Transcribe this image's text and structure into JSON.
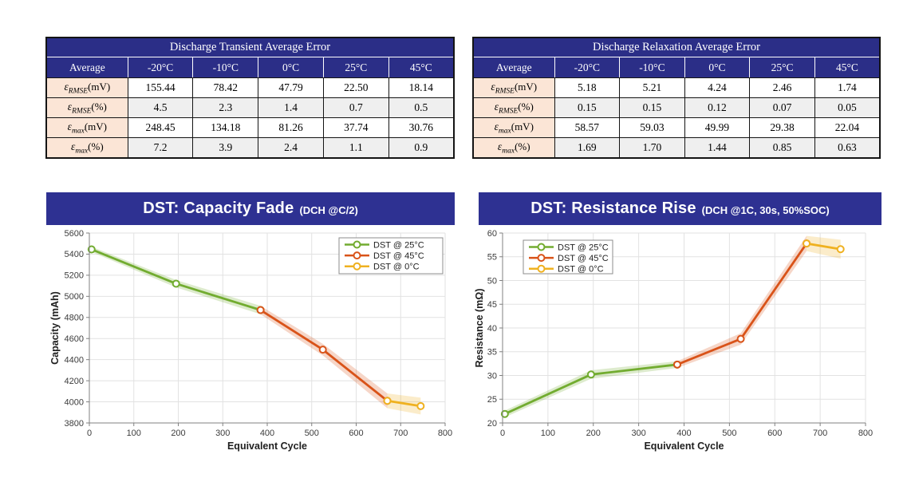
{
  "colors": {
    "banner_navy": "#2E3192",
    "table_header_navy": "#2B2E87",
    "row_label_peach": "#FBE5D6",
    "stripe_gray": "#EFEFEF",
    "series_green": "#72AC30",
    "series_red": "#D95319",
    "series_yellow": "#EFB120",
    "grid_gray": "#E2E2E2",
    "axis_gray": "#808080"
  },
  "tables": [
    {
      "title": "Discharge Transient Average Error",
      "corner": "Average",
      "cols": [
        "-20°C",
        "-10°C",
        "0°C",
        "25°C",
        "45°C"
      ],
      "rows": [
        {
          "sym": "ε",
          "sub": "RMSE",
          "unit": "(mV)",
          "v": [
            "155.44",
            "78.42",
            "47.79",
            "22.50",
            "18.14"
          ]
        },
        {
          "sym": "ε",
          "sub": "RMSE",
          "unit": "(%)",
          "v": [
            "4.5",
            "2.3",
            "1.4",
            "0.7",
            "0.5"
          ]
        },
        {
          "sym": "ε",
          "sub": "max",
          "unit": "(mV)",
          "v": [
            "248.45",
            "134.18",
            "81.26",
            "37.74",
            "30.76"
          ]
        },
        {
          "sym": "ε",
          "sub": "max",
          "unit": "(%)",
          "v": [
            "7.2",
            "3.9",
            "2.4",
            "1.1",
            "0.9"
          ]
        }
      ]
    },
    {
      "title": "Discharge Relaxation Average Error",
      "corner": "Average",
      "cols": [
        "-20°C",
        "-10°C",
        "0°C",
        "25°C",
        "45°C"
      ],
      "rows": [
        {
          "sym": "ε",
          "sub": "RMSE",
          "unit": "(mV)",
          "v": [
            "5.18",
            "5.21",
            "4.24",
            "2.46",
            "1.74"
          ]
        },
        {
          "sym": "ε",
          "sub": "RMSE",
          "unit": "(%)",
          "v": [
            "0.15",
            "0.15",
            "0.12",
            "0.07",
            "0.05"
          ]
        },
        {
          "sym": "ε",
          "sub": "max",
          "unit": "(mV)",
          "v": [
            "58.57",
            "59.03",
            "49.99",
            "29.38",
            "22.04"
          ]
        },
        {
          "sym": "ε",
          "sub": "max",
          "unit": "(%)",
          "v": [
            "1.69",
            "1.70",
            "1.44",
            "0.85",
            "0.63"
          ]
        }
      ]
    }
  ],
  "chart_data": [
    {
      "type": "line",
      "title": "DST: Capacity Fade",
      "subtitle": "(DCH @C/2)",
      "xlabel": "Equivalent Cycle",
      "ylabel": "Capacity (mAh)",
      "xlim": [
        0,
        800
      ],
      "ylim": [
        3800,
        5600
      ],
      "xticks": [
        0,
        100,
        200,
        300,
        400,
        500,
        600,
        700,
        800
      ],
      "yticks": [
        3800,
        4000,
        4200,
        4400,
        4600,
        4800,
        5000,
        5200,
        5400,
        5600
      ],
      "grid": true,
      "legend_position": "top-right",
      "series": [
        {
          "name": "DST @ 25°C",
          "color": "#72AC30",
          "x": [
            5,
            195,
            385
          ],
          "y": [
            5445,
            5120,
            4870
          ],
          "band": [
            25,
            35,
            40
          ]
        },
        {
          "name": "DST @ 45°C",
          "color": "#D95319",
          "x": [
            385,
            525,
            670
          ],
          "y": [
            4870,
            4495,
            4010
          ],
          "band": [
            40,
            55,
            70
          ]
        },
        {
          "name": "DST @ 0°C",
          "color": "#EFB120",
          "x": [
            670,
            745
          ],
          "y": [
            4010,
            3960
          ],
          "band": [
            70,
            80
          ]
        }
      ]
    },
    {
      "type": "line",
      "title": "DST: Resistance Rise",
      "subtitle": "(DCH @1C, 30s, 50%SOC)",
      "xlabel": "Equivalent Cycle",
      "ylabel": "Resistance (mΩ)",
      "xlim": [
        0,
        800
      ],
      "ylim": [
        20,
        60
      ],
      "xticks": [
        0,
        100,
        200,
        300,
        400,
        500,
        600,
        700,
        800
      ],
      "yticks": [
        20,
        25,
        30,
        35,
        40,
        45,
        50,
        55,
        60
      ],
      "grid": true,
      "legend_position": "top-left",
      "series": [
        {
          "name": "DST @ 25°C",
          "color": "#72AC30",
          "x": [
            5,
            195,
            385
          ],
          "y": [
            21.9,
            30.2,
            32.3
          ],
          "band": [
            0.7,
            0.9,
            0.7
          ]
        },
        {
          "name": "DST @ 45°C",
          "color": "#D95319",
          "x": [
            385,
            525,
            670
          ],
          "y": [
            32.3,
            37.7,
            57.8
          ],
          "band": [
            0.7,
            1.2,
            1.6
          ]
        },
        {
          "name": "DST @ 0°C",
          "color": "#EFB120",
          "x": [
            670,
            745
          ],
          "y": [
            57.8,
            56.6
          ],
          "band": [
            1.6,
            2.0
          ]
        }
      ]
    }
  ]
}
